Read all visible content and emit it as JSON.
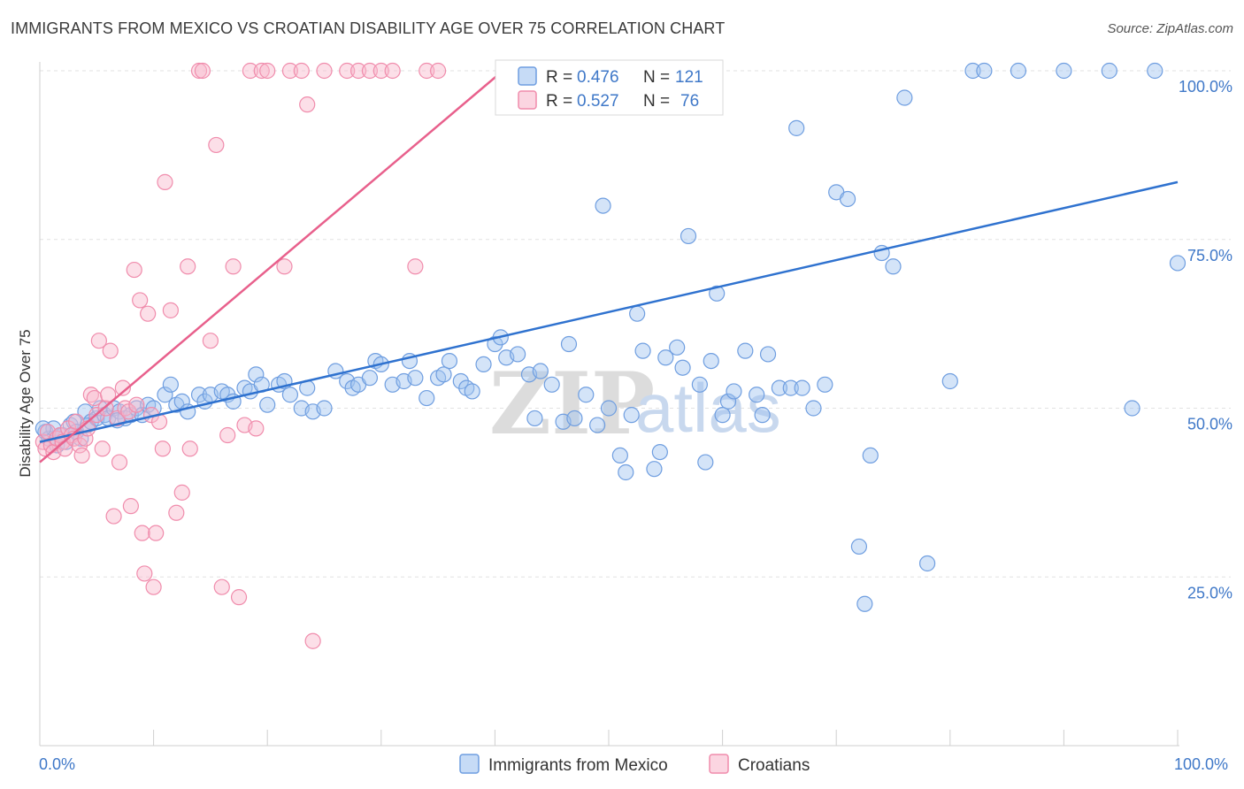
{
  "title": "IMMIGRANTS FROM MEXICO VS CROATIAN DISABILITY AGE OVER 75 CORRELATION CHART",
  "source": "Source: ZipAtlas.com",
  "watermark": {
    "zip": "ZIP",
    "atlas": "atlas"
  },
  "legend_box": {
    "rows": [
      {
        "r_label": "R =",
        "r_value": "0.476",
        "n_label": "N =",
        "n_value": "121",
        "color": "#6f9ee0"
      },
      {
        "r_label": "R =",
        "r_value": "0.527",
        "n_label": "N =",
        "n_value": "76",
        "color": "#f08cac"
      }
    ]
  },
  "chart_data": {
    "type": "scatter",
    "title": "IMMIGRANTS FROM MEXICO VS CROATIAN DISABILITY AGE OVER 75 CORRELATION CHART",
    "xlabel": "",
    "ylabel": "Disability Age Over 75",
    "xlim": [
      0,
      100
    ],
    "ylim": [
      0,
      100
    ],
    "x_tick_labels": [
      "0.0%",
      "100.0%"
    ],
    "y_tick_labels": [
      "25.0%",
      "50.0%",
      "75.0%",
      "100.0%"
    ],
    "y_ticks": [
      25,
      50,
      75,
      100
    ],
    "grid": true,
    "legend_position": "bottom",
    "series": [
      {
        "name": "Immigrants from Mexico",
        "color": "#6f9ee0",
        "fill": "rgba(160,195,240,0.45)",
        "trendline": {
          "x": [
            0,
            100
          ],
          "y": [
            45.0,
            83.5
          ],
          "color": "#2f72cf"
        },
        "points": [
          [
            0.5,
            46.5
          ],
          [
            0.8,
            45.5
          ],
          [
            1.2,
            47
          ],
          [
            1.5,
            44.5
          ],
          [
            2,
            46
          ],
          [
            2.3,
            45
          ],
          [
            2.7,
            47.5
          ],
          [
            3,
            48
          ],
          [
            3.2,
            46.5
          ],
          [
            3.6,
            45.5
          ],
          [
            4,
            49.5
          ],
          [
            4.2,
            47.5
          ],
          [
            4.5,
            48
          ],
          [
            5,
            48.5
          ],
          [
            5.3,
            50
          ],
          [
            5.7,
            49
          ],
          [
            6,
            48.5
          ],
          [
            6.5,
            50
          ],
          [
            7,
            49.5
          ],
          [
            7.5,
            48.5
          ],
          [
            8,
            49
          ],
          [
            8.5,
            50
          ],
          [
            9,
            49
          ],
          [
            9.5,
            50.5
          ],
          [
            10,
            50
          ],
          [
            11,
            52
          ],
          [
            11.5,
            53.5
          ],
          [
            12,
            50.5
          ],
          [
            12.5,
            51
          ],
          [
            13,
            49.5
          ],
          [
            14,
            52
          ],
          [
            14.5,
            51
          ],
          [
            15,
            52
          ],
          [
            16,
            52.5
          ],
          [
            16.5,
            52
          ],
          [
            17,
            51
          ],
          [
            18,
            53
          ],
          [
            18.5,
            52.5
          ],
          [
            19,
            55
          ],
          [
            19.5,
            53.5
          ],
          [
            20,
            50.5
          ],
          [
            21,
            53.5
          ],
          [
            21.5,
            54
          ],
          [
            22,
            52
          ],
          [
            23,
            50
          ],
          [
            23.5,
            53
          ],
          [
            24,
            49.5
          ],
          [
            25,
            50
          ],
          [
            26,
            55.5
          ],
          [
            27,
            54
          ],
          [
            27.5,
            53
          ],
          [
            28,
            53.5
          ],
          [
            29,
            54.5
          ],
          [
            29.5,
            57
          ],
          [
            30,
            56.5
          ],
          [
            31,
            53.5
          ],
          [
            32,
            54
          ],
          [
            32.5,
            57
          ],
          [
            33,
            54.5
          ],
          [
            34,
            51.5
          ],
          [
            35,
            54.5
          ],
          [
            35.5,
            55
          ],
          [
            36,
            57
          ],
          [
            37,
            54
          ],
          [
            37.5,
            53
          ],
          [
            38,
            52.5
          ],
          [
            39,
            56.5
          ],
          [
            40,
            59.5
          ],
          [
            40.5,
            60.5
          ],
          [
            41,
            57.5
          ],
          [
            42,
            58
          ],
          [
            43,
            55
          ],
          [
            43.5,
            48.5
          ],
          [
            44,
            55.5
          ],
          [
            45,
            53.5
          ],
          [
            46,
            48
          ],
          [
            46.5,
            59.5
          ],
          [
            47,
            48.5
          ],
          [
            48,
            52
          ],
          [
            49,
            47.5
          ],
          [
            49.5,
            80
          ],
          [
            50,
            50
          ],
          [
            51,
            43
          ],
          [
            51.5,
            40.5
          ],
          [
            52,
            49
          ],
          [
            52.5,
            64
          ],
          [
            53,
            58.5
          ],
          [
            54,
            41
          ],
          [
            54.5,
            43.5
          ],
          [
            55,
            57.5
          ],
          [
            56,
            59
          ],
          [
            56.5,
            56
          ],
          [
            57,
            75.5
          ],
          [
            58,
            53.5
          ],
          [
            58.5,
            42
          ],
          [
            59,
            57
          ],
          [
            59.5,
            67
          ],
          [
            60,
            49
          ],
          [
            60.5,
            51
          ],
          [
            61,
            52.5
          ],
          [
            62,
            58.5
          ],
          [
            63,
            52
          ],
          [
            63.5,
            49
          ],
          [
            64,
            58
          ],
          [
            65,
            53
          ],
          [
            66,
            53
          ],
          [
            66.5,
            91.5
          ],
          [
            67,
            53
          ],
          [
            68,
            50
          ],
          [
            69,
            53.5
          ],
          [
            70,
            82
          ],
          [
            71,
            81
          ],
          [
            72,
            29.5
          ],
          [
            72.5,
            21
          ],
          [
            73,
            43
          ],
          [
            74,
            73
          ],
          [
            75,
            71
          ],
          [
            76,
            96
          ],
          [
            78,
            27
          ],
          [
            80,
            54
          ],
          [
            82,
            100
          ],
          [
            83,
            100
          ],
          [
            86,
            100
          ],
          [
            90,
            100
          ],
          [
            94,
            100
          ],
          [
            96,
            50
          ],
          [
            98,
            100
          ],
          [
            100,
            71.5
          ],
          [
            0.3,
            47
          ],
          [
            1.8,
            46
          ],
          [
            6.8,
            48.2
          ]
        ]
      },
      {
        "name": "Croatians",
        "color": "#f08cac",
        "fill": "rgba(248,185,205,0.45)",
        "trendline": {
          "x": [
            0,
            40.7
          ],
          "y": [
            42.0,
            100
          ],
          "color": "#e8608c"
        },
        "points": [
          [
            0.3,
            45
          ],
          [
            0.5,
            44
          ],
          [
            0.7,
            46.5
          ],
          [
            1,
            44.5
          ],
          [
            1.2,
            43.5
          ],
          [
            1.5,
            45.5
          ],
          [
            1.8,
            46
          ],
          [
            2,
            45
          ],
          [
            2.2,
            44
          ],
          [
            2.5,
            47
          ],
          [
            2.8,
            46
          ],
          [
            3,
            45.5
          ],
          [
            3.2,
            48
          ],
          [
            3.5,
            44.5
          ],
          [
            3.7,
            43
          ],
          [
            4,
            45.5
          ],
          [
            4.2,
            47
          ],
          [
            4.5,
            52
          ],
          [
            4.8,
            51.5
          ],
          [
            5,
            49
          ],
          [
            5.2,
            60
          ],
          [
            5.5,
            44
          ],
          [
            5.8,
            50
          ],
          [
            6,
            52
          ],
          [
            6.2,
            58.5
          ],
          [
            6.5,
            34
          ],
          [
            6.8,
            48.5
          ],
          [
            7,
            42
          ],
          [
            7.3,
            53
          ],
          [
            7.5,
            50
          ],
          [
            7.8,
            49.5
          ],
          [
            8,
            35.5
          ],
          [
            8.3,
            70.5
          ],
          [
            8.5,
            50.5
          ],
          [
            8.8,
            66
          ],
          [
            9,
            31.5
          ],
          [
            9.2,
            25.5
          ],
          [
            9.5,
            64
          ],
          [
            9.8,
            49
          ],
          [
            10,
            23.5
          ],
          [
            10.2,
            31.5
          ],
          [
            10.5,
            48
          ],
          [
            10.8,
            44
          ],
          [
            11,
            83.5
          ],
          [
            11.5,
            64.5
          ],
          [
            12,
            34.5
          ],
          [
            12.5,
            37.5
          ],
          [
            13,
            71
          ],
          [
            13.2,
            44
          ],
          [
            14,
            100
          ],
          [
            14.3,
            100
          ],
          [
            15,
            60
          ],
          [
            15.5,
            89
          ],
          [
            16,
            23.5
          ],
          [
            16.5,
            46
          ],
          [
            17,
            71
          ],
          [
            17.5,
            22
          ],
          [
            18,
            47.5
          ],
          [
            18.5,
            100
          ],
          [
            19,
            47
          ],
          [
            19.5,
            100
          ],
          [
            20,
            100
          ],
          [
            21.5,
            71
          ],
          [
            22,
            100
          ],
          [
            23,
            100
          ],
          [
            23.5,
            95
          ],
          [
            24,
            15.5
          ],
          [
            25,
            100
          ],
          [
            27,
            100
          ],
          [
            28,
            100
          ],
          [
            29,
            100
          ],
          [
            30,
            100
          ],
          [
            31,
            100
          ],
          [
            33,
            71
          ],
          [
            34,
            100
          ],
          [
            35,
            100
          ]
        ]
      }
    ]
  }
}
